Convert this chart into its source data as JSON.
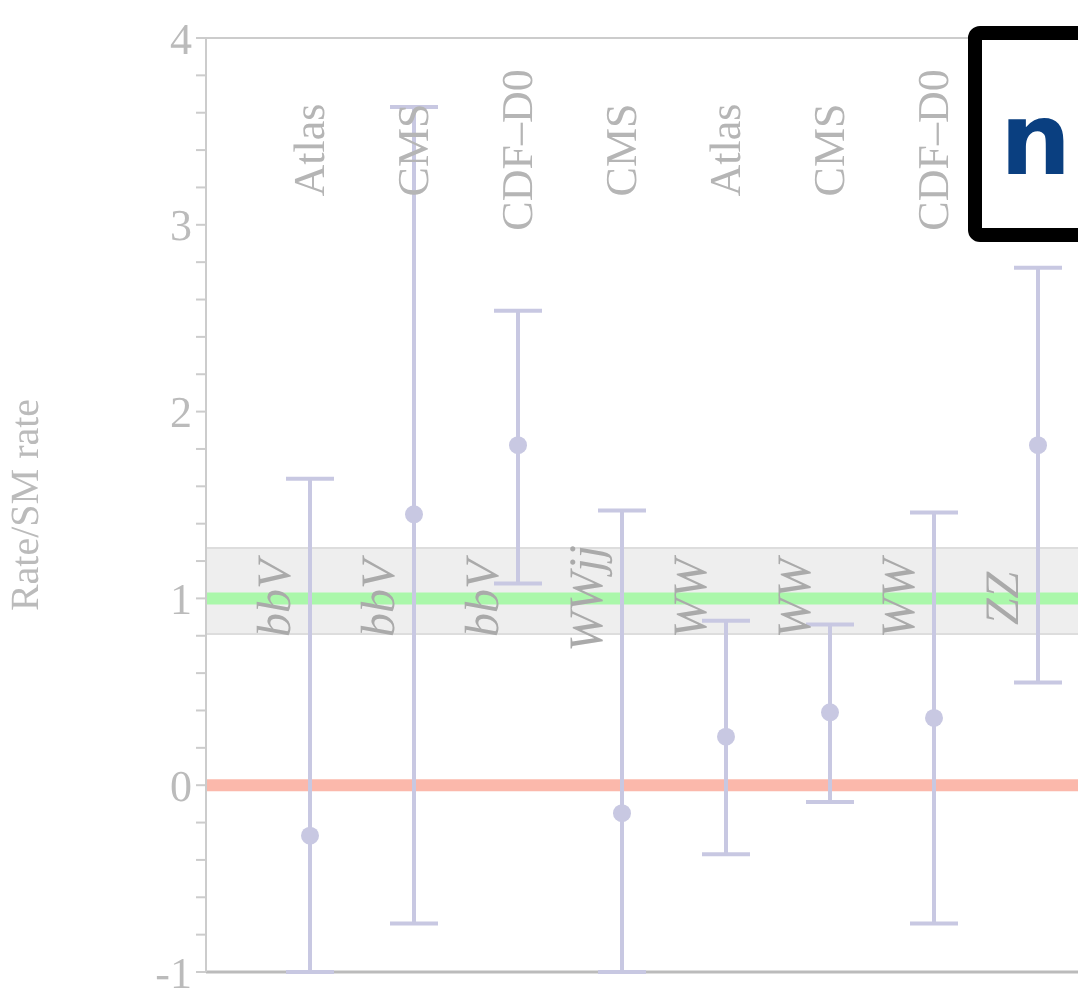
{
  "chart_data": {
    "type": "scatter",
    "ylabel": "Rate/SM rate",
    "categories": [
      "Atlas",
      "CMS",
      "CDF–D0",
      "CMS",
      "Atlas",
      "CMS",
      "CDF–D0",
      null
    ],
    "values": [
      -0.27,
      1.45,
      1.82,
      -0.15,
      0.26,
      0.39,
      0.36,
      1.82
    ],
    "errors": [
      [
        -1,
        1.64
      ],
      [
        -0.74,
        3.63
      ],
      [
        1.08,
        2.54
      ],
      [
        -1,
        1.47
      ],
      [
        -0.37,
        0.88
      ],
      [
        -0.09,
        0.86
      ],
      [
        -0.74,
        1.46
      ],
      [
        0.55,
        2.77
      ]
    ],
    "color": "#c8c8e2",
    "marker": "circle",
    "ylim": [
      -1,
      4
    ],
    "yticks": [
      -1,
      {
        "value": -0.8,
        "label": null
      },
      {
        "value": -0.6,
        "label": null
      },
      {
        "value": -0.4,
        "label": null
      },
      {
        "value": -0.2,
        "label": null
      },
      0,
      {
        "value": 0.2,
        "label": null
      },
      {
        "value": 0.4,
        "label": null
      },
      {
        "value": 0.6,
        "label": null
      },
      {
        "value": 0.8,
        "label": null
      },
      1,
      {
        "value": 1.2,
        "label": null
      },
      {
        "value": 1.4,
        "label": null
      },
      {
        "value": 1.6,
        "label": null
      },
      {
        "value": 1.8,
        "label": null
      },
      2,
      {
        "value": 2.2,
        "label": null
      },
      {
        "value": 2.4,
        "label": null
      },
      {
        "value": 2.6,
        "label": null
      },
      {
        "value": 2.8,
        "label": null
      },
      3,
      {
        "value": 3.2,
        "label": null
      },
      {
        "value": 3.4,
        "label": null
      },
      {
        "value": 3.6,
        "label": null
      },
      {
        "value": 3.8,
        "label": null
      },
      4
    ],
    "ref_lines": [
      {
        "axis": "y",
        "value": 1,
        "color": "#aaf7aa"
      },
      {
        "axis": "y",
        "value": 0,
        "color": "#fbb8ab"
      }
    ],
    "bands": [
      {
        "axis": "y",
        "from": 0.81,
        "to": 1.27,
        "color": "#eeeeee"
      }
    ],
    "annotations": [
      "bbV",
      "bbV",
      "bbV",
      "WWjj",
      "WW",
      "WW",
      "WW",
      "ZZ",
      "n"
    ],
    "grid": false
  }
}
